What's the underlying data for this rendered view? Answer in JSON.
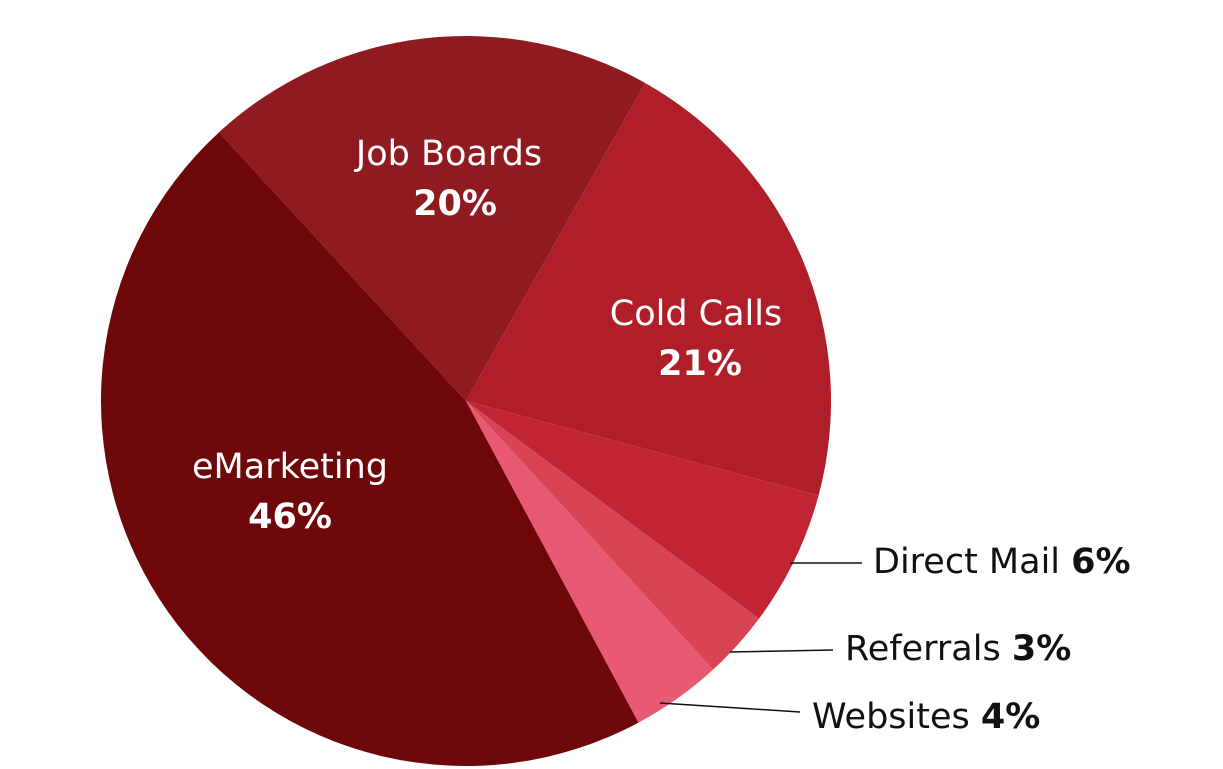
{
  "chart_data": {
    "type": "pie",
    "categories": [
      "Job Boards",
      "Cold Calls",
      "Direct Mail",
      "Referrals",
      "Websites",
      "eMarketing"
    ],
    "values": [
      20,
      21,
      6,
      3,
      4,
      46
    ],
    "value_labels": [
      "20%",
      "21%",
      "6%",
      "3%",
      "4%",
      "46%"
    ],
    "colors": [
      "#8f1a1f",
      "#b01f29",
      "#c12432",
      "#d94455",
      "#e85a72",
      "#6e070a"
    ]
  }
}
